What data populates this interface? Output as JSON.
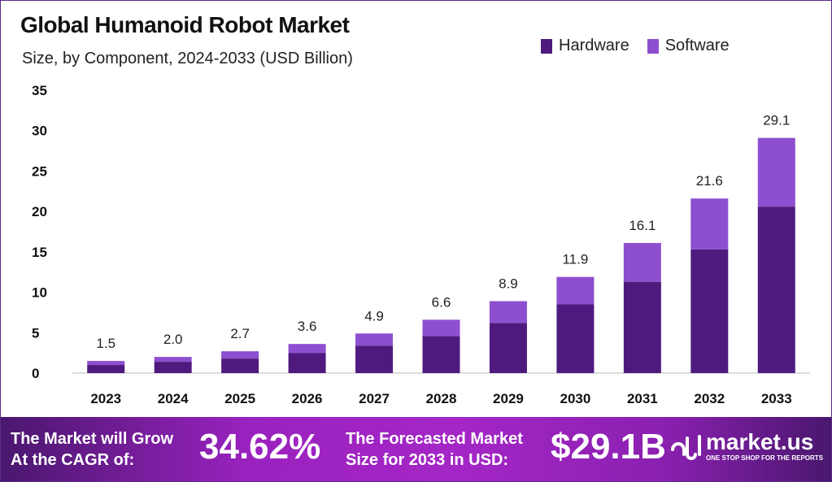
{
  "header": {
    "title": "Global Humanoid Robot Market",
    "subtitle": "Size, by Component, 2024-2033 (USD Billion)"
  },
  "colors": {
    "hardware": "#4f1a7e",
    "software": "#8d4fd0",
    "banner": "#a024c4"
  },
  "chart_data": {
    "type": "bar",
    "stacked": true,
    "title": "Global Humanoid Robot Market",
    "subtitle": "Size, by Component, 2024-2033 (USD Billion)",
    "categories": [
      "2023",
      "2024",
      "2025",
      "2026",
      "2027",
      "2028",
      "2029",
      "2030",
      "2031",
      "2032",
      "2033"
    ],
    "series": [
      {
        "name": "Hardware",
        "values": [
          1.0,
          1.4,
          1.8,
          2.5,
          3.4,
          4.6,
          6.2,
          8.5,
          11.3,
          15.3,
          20.6
        ]
      },
      {
        "name": "Software",
        "values": [
          0.5,
          0.6,
          0.9,
          1.1,
          1.5,
          2.0,
          2.7,
          3.4,
          4.8,
          6.3,
          8.5
        ]
      }
    ],
    "totals_labels": [
      "1.5",
      "2.0",
      "2.7",
      "3.6",
      "4.9",
      "6.6",
      "8.9",
      "11.9",
      "16.1",
      "21.6",
      "29.1"
    ],
    "totals": [
      1.5,
      2.0,
      2.7,
      3.6,
      4.9,
      6.6,
      8.9,
      11.9,
      16.1,
      21.6,
      29.1
    ],
    "yticks": [
      "0",
      "5",
      "10",
      "15",
      "20",
      "25",
      "30",
      "35"
    ],
    "ylim": [
      0,
      35
    ],
    "xlabel": "",
    "ylabel": "",
    "grid": false,
    "legend": "top-right"
  },
  "banner": {
    "cagr_text_line1": "The Market will Grow",
    "cagr_text_line2": "At the CAGR of:",
    "cagr_value": "34.62%",
    "forecast_line1": "The Forecasted Market",
    "forecast_line2": "Size for 2033 in USD:",
    "forecast_value": "$29.1B",
    "logo_name": "market.us",
    "logo_tagline": "ONE STOP SHOP FOR THE REPORTS"
  }
}
